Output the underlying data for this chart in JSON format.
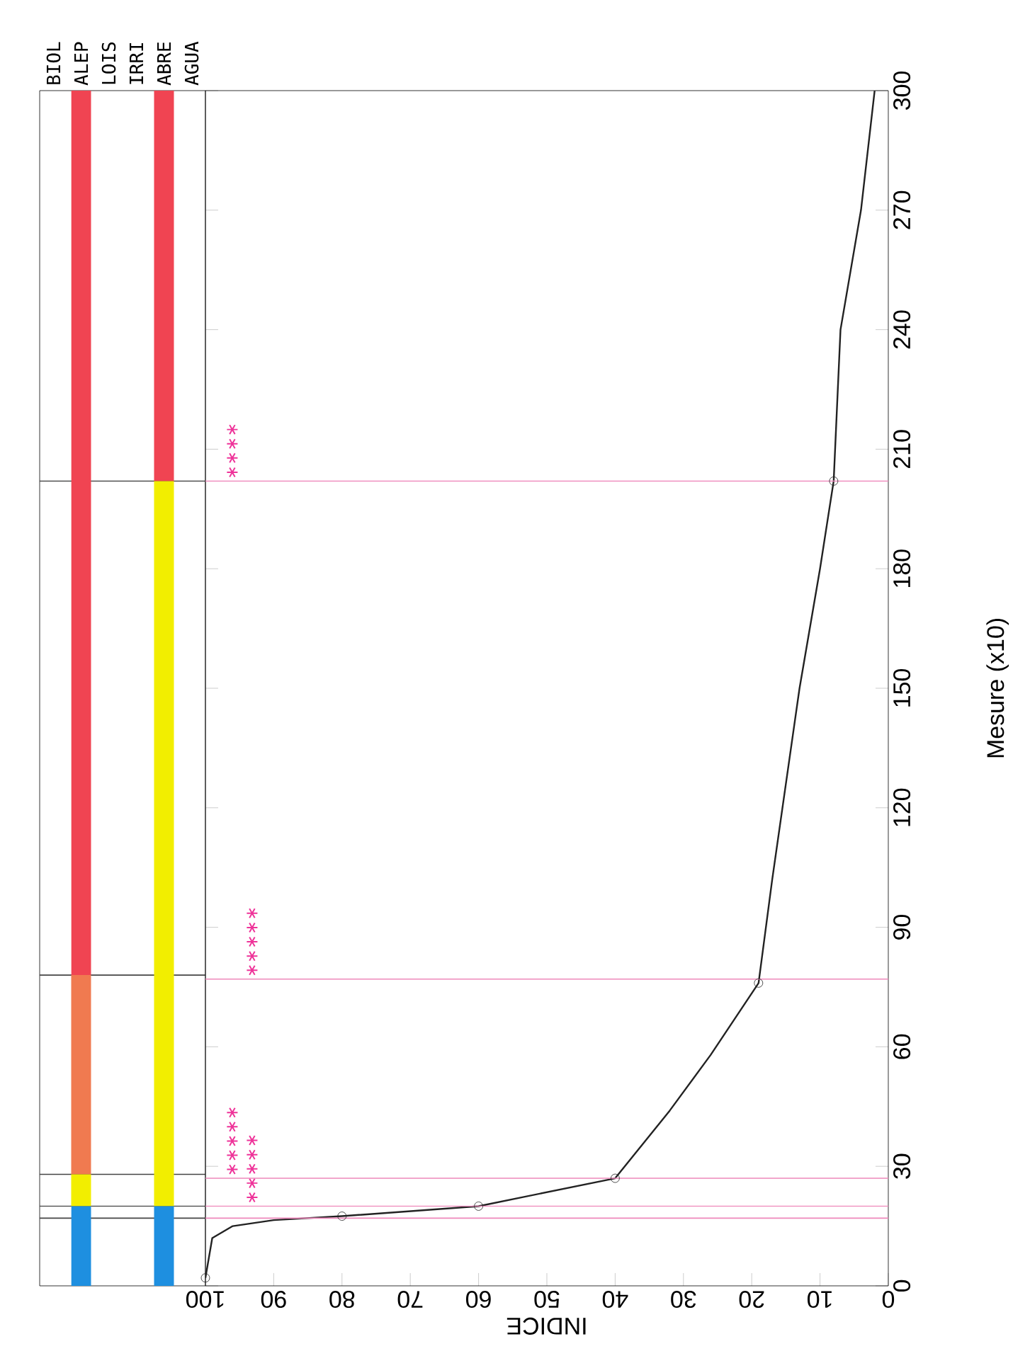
{
  "chart_data": [
    {
      "type": "bar",
      "stacked": true,
      "categories": [
        "BIOL",
        "ALEP",
        "LOIS",
        "IRRI",
        "ABRE",
        "AGUA"
      ],
      "series": [
        {
          "color": "#1e8fe0",
          "values": [
            0,
            20,
            0,
            0,
            20,
            0
          ]
        },
        {
          "color": "#f2ee00",
          "values": [
            0,
            8,
            0,
            0,
            182,
            0
          ]
        },
        {
          "color": "#f07a50",
          "values": [
            0,
            50,
            0,
            0,
            0,
            0
          ]
        },
        {
          "color": "#f04452",
          "values": [
            0,
            222,
            0,
            0,
            98,
            0
          ]
        }
      ],
      "ylim": [
        0,
        300
      ],
      "tick_labels": "x",
      "ref_lines": [
        {
          "axis": "y",
          "value": 17,
          "color": "#444444"
        },
        {
          "axis": "y",
          "value": 20,
          "color": "#444444"
        },
        {
          "axis": "y",
          "value": 28,
          "color": "#444444"
        },
        {
          "axis": "y",
          "value": 78,
          "color": "#444444"
        },
        {
          "axis": "y",
          "value": 202,
          "color": "#444444"
        }
      ]
    },
    {
      "type": "line",
      "xlabel": "INDICE",
      "ylabel": "Mesure (x10)",
      "series": [
        {
          "color": "#222222",
          "x": [
            100,
            99,
            96,
            90,
            80,
            60,
            40,
            32,
            26,
            19,
            17,
            13,
            10,
            8,
            7,
            4,
            2
          ],
          "values": [
            2,
            12,
            15,
            16.5,
            17.5,
            20,
            27,
            44,
            58,
            76,
            102,
            150,
            180,
            202,
            240,
            270,
            300
          ]
        },
        {
          "type": "scatter",
          "color": "#222222",
          "marker": "circle",
          "x": [
            100,
            80,
            60,
            40,
            19,
            8
          ],
          "values": [
            2,
            17.5,
            20,
            27,
            76,
            202
          ]
        }
      ],
      "xlim": [
        100,
        0
      ],
      "ylim": [
        0,
        300
      ],
      "xticks": [
        100,
        90,
        80,
        70,
        60,
        50,
        40,
        30,
        20,
        10,
        0
      ],
      "yticks": [
        0,
        30,
        60,
        90,
        120,
        150,
        180,
        210,
        240,
        270,
        300
      ],
      "ref_lines": [
        {
          "axis": "y",
          "value": 17,
          "color": "#ee88bb"
        },
        {
          "axis": "y",
          "value": 20,
          "color": "#ee88bb",
          "label": "∗∗∗∗∗"
        },
        {
          "axis": "y",
          "value": 27,
          "color": "#ee88bb",
          "label": "∗∗∗∗∗"
        },
        {
          "axis": "y",
          "value": 77,
          "color": "#ee88bb",
          "label": "∗∗∗∗∗"
        },
        {
          "axis": "y",
          "value": 202,
          "color": "#ee88bb",
          "label": "∗∗∗∗"
        }
      ]
    }
  ]
}
